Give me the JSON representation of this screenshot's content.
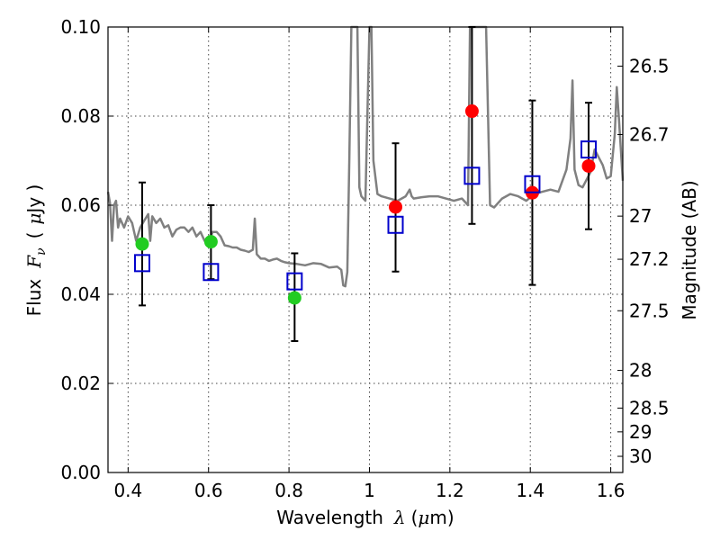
{
  "chart_data": {
    "type": "scatter",
    "xlabel": "Wavelength",
    "xlabel_symbol": "λ",
    "xlabel_unit_open": "(",
    "xlabel_unit_mu": "μ",
    "xlabel_unit_rest": "m)",
    "ylabel": "Flux",
    "ylabel_symbol": "F",
    "ylabel_subscript": "ν",
    "ylabel_unit_open": "(",
    "ylabel_unit_mu": "μ",
    "ylabel_unit_rest": "Jy )",
    "y2label": "Magnitude (AB)",
    "xlim": [
      0.35,
      1.63
    ],
    "ylim": [
      0,
      0.1
    ],
    "grid": true,
    "x_ticks": [
      {
        "value": 0.4,
        "label": "0.4"
      },
      {
        "value": 0.6,
        "label": "0.6"
      },
      {
        "value": 0.8,
        "label": "0.8"
      },
      {
        "value": 1.0,
        "label": "1"
      },
      {
        "value": 1.2,
        "label": "1.2"
      },
      {
        "value": 1.4,
        "label": "1.4"
      },
      {
        "value": 1.6,
        "label": "1.6"
      }
    ],
    "y_ticks": [
      {
        "value": 0.0,
        "label": "0.00"
      },
      {
        "value": 0.02,
        "label": "0.02"
      },
      {
        "value": 0.04,
        "label": "0.04"
      },
      {
        "value": 0.06,
        "label": "0.06"
      },
      {
        "value": 0.08,
        "label": "0.08"
      },
      {
        "value": 0.1,
        "label": "0.10"
      }
    ],
    "y2_ticks": [
      {
        "value": 26.5,
        "label": "26.5"
      },
      {
        "value": 26.7,
        "label": "26.7"
      },
      {
        "value": 27.0,
        "label": "27"
      },
      {
        "value": 27.2,
        "label": "27.2"
      },
      {
        "value": 27.5,
        "label": "27.5"
      },
      {
        "value": 28.0,
        "label": "28"
      },
      {
        "value": 28.5,
        "label": "28.5"
      },
      {
        "value": 29.0,
        "label": "29"
      },
      {
        "value": 30.0,
        "label": "30"
      }
    ],
    "observed_points": [
      {
        "x": 0.435,
        "y": 0.0513,
        "color": "#22cc22"
      },
      {
        "x": 0.606,
        "y": 0.0518,
        "color": "#22cc22"
      },
      {
        "x": 0.814,
        "y": 0.0392,
        "color": "#22cc22"
      },
      {
        "x": 1.065,
        "y": 0.0596,
        "color": "#ff0000"
      },
      {
        "x": 1.255,
        "y": 0.0811,
        "color": "#ff0000"
      },
      {
        "x": 1.405,
        "y": 0.0628,
        "color": "#ff0000"
      },
      {
        "x": 1.545,
        "y": 0.0688,
        "color": "#ff0000"
      }
    ],
    "model_points": [
      {
        "x": 0.435,
        "y": 0.047,
        "err_low": 0.0375,
        "err_high": 0.0651
      },
      {
        "x": 0.606,
        "y": 0.045,
        "err_low": 0.0434,
        "err_high": 0.06
      },
      {
        "x": 0.814,
        "y": 0.0429,
        "err_low": 0.0295,
        "err_high": 0.0492
      },
      {
        "x": 1.065,
        "y": 0.0556,
        "err_low": 0.0451,
        "err_high": 0.0739
      },
      {
        "x": 1.255,
        "y": 0.0666,
        "err_low": 0.0558,
        "err_high": 0.1
      },
      {
        "x": 1.405,
        "y": 0.0647,
        "err_low": 0.0421,
        "err_high": 0.0835
      },
      {
        "x": 1.545,
        "y": 0.0725,
        "err_low": 0.0546,
        "err_high": 0.083
      }
    ],
    "model_marker_color": "#0000cc",
    "errorbar_color": "#000000",
    "sed_color": "#808080",
    "sed_x": [
      0.35,
      0.355,
      0.36,
      0.365,
      0.37,
      0.375,
      0.38,
      0.385,
      0.39,
      0.4,
      0.41,
      0.42,
      0.43,
      0.44,
      0.45,
      0.455,
      0.46,
      0.47,
      0.48,
      0.49,
      0.5,
      0.51,
      0.52,
      0.53,
      0.54,
      0.55,
      0.56,
      0.57,
      0.58,
      0.59,
      0.6,
      0.61,
      0.62,
      0.63,
      0.64,
      0.65,
      0.66,
      0.67,
      0.68,
      0.69,
      0.7,
      0.71,
      0.715,
      0.72,
      0.73,
      0.74,
      0.75,
      0.76,
      0.77,
      0.78,
      0.79,
      0.8,
      0.82,
      0.84,
      0.86,
      0.88,
      0.9,
      0.92,
      0.93,
      0.935,
      0.94,
      0.945,
      0.95,
      0.955,
      0.96,
      0.965,
      0.97,
      0.975,
      0.98,
      0.99,
      1.0,
      1.005,
      1.01,
      1.02,
      1.03,
      1.05,
      1.07,
      1.09,
      1.1,
      1.105,
      1.11,
      1.13,
      1.15,
      1.17,
      1.19,
      1.21,
      1.23,
      1.245,
      1.25,
      1.255,
      1.26,
      1.265,
      1.27,
      1.28,
      1.285,
      1.29,
      1.3,
      1.31,
      1.33,
      1.35,
      1.37,
      1.39,
      1.41,
      1.43,
      1.45,
      1.47,
      1.49,
      1.5,
      1.505,
      1.51,
      1.52,
      1.53,
      1.55,
      1.56,
      1.58,
      1.59,
      1.6,
      1.61,
      1.615,
      1.62,
      1.63
    ],
    "sed_y": [
      0.063,
      0.0605,
      0.052,
      0.06,
      0.061,
      0.055,
      0.057,
      0.056,
      0.055,
      0.0575,
      0.056,
      0.052,
      0.055,
      0.0565,
      0.058,
      0.052,
      0.0575,
      0.056,
      0.057,
      0.055,
      0.0555,
      0.053,
      0.0545,
      0.055,
      0.055,
      0.054,
      0.055,
      0.053,
      0.054,
      0.052,
      0.0515,
      0.054,
      0.054,
      0.053,
      0.051,
      0.0508,
      0.0505,
      0.0505,
      0.05,
      0.0498,
      0.0495,
      0.05,
      0.057,
      0.049,
      0.048,
      0.048,
      0.0475,
      0.0478,
      0.048,
      0.0475,
      0.0472,
      0.047,
      0.0468,
      0.0465,
      0.047,
      0.0468,
      0.046,
      0.0462,
      0.0455,
      0.042,
      0.0418,
      0.045,
      0.07,
      0.1,
      0.1,
      0.1,
      0.1,
      0.064,
      0.062,
      0.061,
      0.1,
      0.1,
      0.07,
      0.0625,
      0.062,
      0.0615,
      0.061,
      0.062,
      0.0635,
      0.062,
      0.0615,
      0.0618,
      0.062,
      0.062,
      0.0615,
      0.061,
      0.0615,
      0.06,
      0.1,
      0.1,
      0.1,
      0.1,
      0.1,
      0.1,
      0.1,
      0.1,
      0.06,
      0.0595,
      0.0615,
      0.0625,
      0.062,
      0.061,
      0.0625,
      0.063,
      0.0635,
      0.063,
      0.068,
      0.075,
      0.088,
      0.068,
      0.0645,
      0.064,
      0.0675,
      0.0725,
      0.069,
      0.066,
      0.0665,
      0.076,
      0.0865,
      0.08,
      0.0655
    ]
  }
}
